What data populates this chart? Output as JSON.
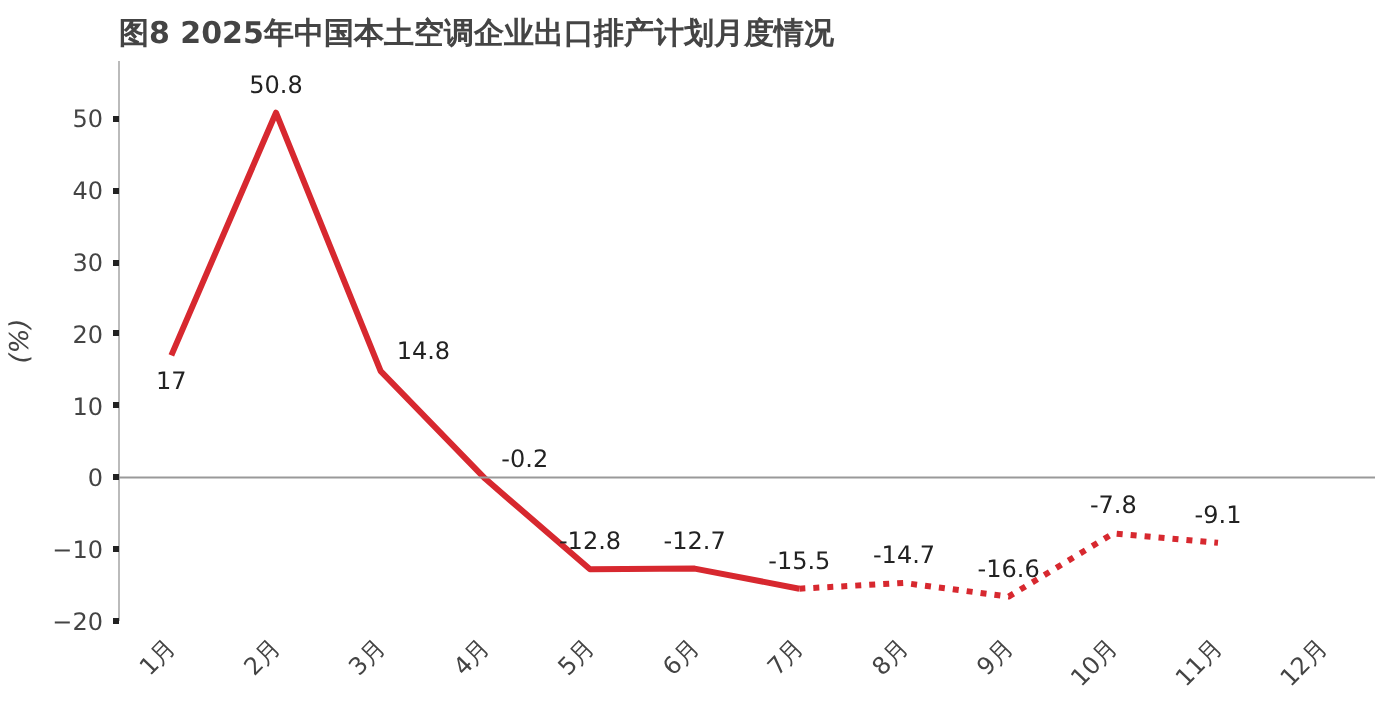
{
  "chart_data": {
    "type": "line",
    "title": "图8 2025年中国本土空调企业出口排产计划月度情况",
    "ylabel": "(%)",
    "categories": [
      "1月",
      "2月",
      "3月",
      "4月",
      "5月",
      "6月",
      "7月",
      "8月",
      "9月",
      "10月",
      "11月",
      "12月"
    ],
    "series": [
      {
        "color": "#d7282f",
        "line_style": "solid",
        "values": [
          17,
          50.8,
          14.8,
          -0.2,
          -12.8,
          -12.7,
          -15.5,
          null,
          null,
          null,
          null,
          null
        ],
        "value_labels": [
          "17",
          "50.8",
          "14.8",
          "-0.2",
          "-12.8",
          "-12.7",
          "-15.5",
          null,
          null,
          null,
          null,
          null
        ]
      },
      {
        "color": "#d7282f",
        "line_style": "dotted",
        "values": [
          null,
          null,
          null,
          null,
          null,
          null,
          -15.5,
          -14.7,
          -16.6,
          -7.8,
          -9.1,
          null
        ],
        "value_labels": [
          null,
          null,
          null,
          null,
          null,
          null,
          null,
          "-14.7",
          "-16.6",
          "-7.8",
          "-9.1",
          null
        ]
      }
    ],
    "ylim": [
      -20,
      58
    ],
    "yticks": [
      -20,
      -10,
      0,
      10,
      20,
      30,
      40,
      50
    ],
    "ref_lines": [
      {
        "axis": "y",
        "value": 0,
        "color": "#999999"
      }
    ],
    "grid": false,
    "marker": "none"
  }
}
